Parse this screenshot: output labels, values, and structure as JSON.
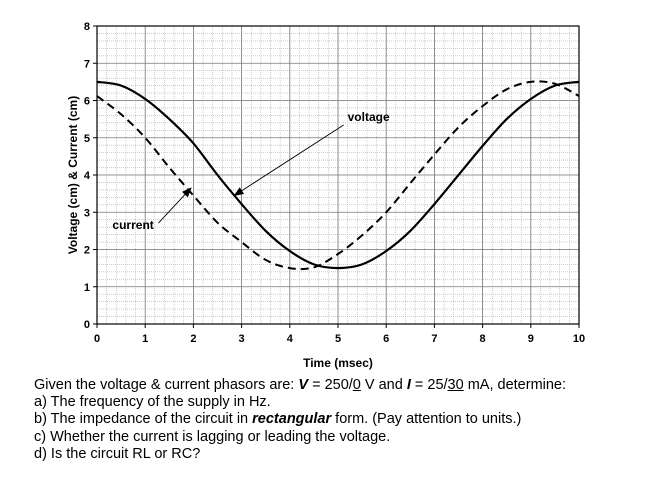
{
  "chart_data": {
    "type": "line",
    "xlabel": "Time (msec)",
    "ylabel": "Voltage (cm) & Current (cm)",
    "xlim": [
      0,
      10
    ],
    "ylim": [
      0,
      8
    ],
    "x_ticks": [
      "0",
      "1",
      "2",
      "3",
      "4",
      "5",
      "6",
      "7",
      "8",
      "9",
      "10"
    ],
    "y_ticks": [
      "0",
      "1",
      "2",
      "3",
      "4",
      "5",
      "6",
      "7",
      "8"
    ],
    "grid": true,
    "series": [
      {
        "name": "voltage",
        "style": "solid",
        "x": [
          0,
          0.5,
          1,
          1.5,
          2,
          2.5,
          3,
          3.5,
          4,
          4.5,
          5,
          5.5,
          6,
          6.5,
          7,
          7.5,
          8,
          8.5,
          9,
          9.5,
          10
        ],
        "values": [
          6.5,
          6.4,
          6.04,
          5.5,
          4.85,
          4.0,
          3.22,
          2.5,
          1.96,
          1.6,
          1.5,
          1.6,
          1.96,
          2.5,
          3.22,
          4.0,
          4.78,
          5.5,
          6.04,
          6.4,
          6.5
        ]
      },
      {
        "name": "current",
        "style": "dashed",
        "x": [
          0,
          0.5,
          1,
          1.5,
          2,
          2.5,
          3,
          3.5,
          4,
          4.5,
          5,
          5.5,
          6,
          6.5,
          7,
          7.5,
          8,
          8.5,
          9,
          9.5,
          10
        ],
        "values": [
          6.12,
          5.63,
          5.0,
          4.2,
          3.45,
          2.72,
          2.2,
          1.72,
          1.5,
          1.52,
          1.88,
          2.38,
          3.0,
          3.78,
          4.55,
          5.28,
          5.85,
          6.3,
          6.5,
          6.45,
          6.12
        ]
      }
    ],
    "annotations": [
      {
        "text": "voltage",
        "x": 5.2,
        "y": 5.45,
        "arrow_to": [
          2.85,
          3.45
        ]
      },
      {
        "text": "current",
        "x": 0.32,
        "y": 2.55,
        "arrow_to": [
          1.95,
          3.65
        ]
      }
    ]
  },
  "question": {
    "line1_a": "Given the voltage & current phasors are:  ",
    "V": "V",
    "line1_b": " = 250/",
    "v_angle": "0",
    "line1_c": " V and ",
    "I": "I",
    "line1_d": " = 25/",
    "i_angle": "30",
    "line1_e": "  mA, determine:",
    "a": "a)  The frequency of the supply in Hz.",
    "b_pre": "b)  The impedance of the circuit in ",
    "b_emph": "rectangular",
    "b_post": " form.  (Pay attention to units.)",
    "c": "c)  Whether the current is lagging or leading the voltage.",
    "d": "d)  Is the circuit RL or RC?"
  }
}
